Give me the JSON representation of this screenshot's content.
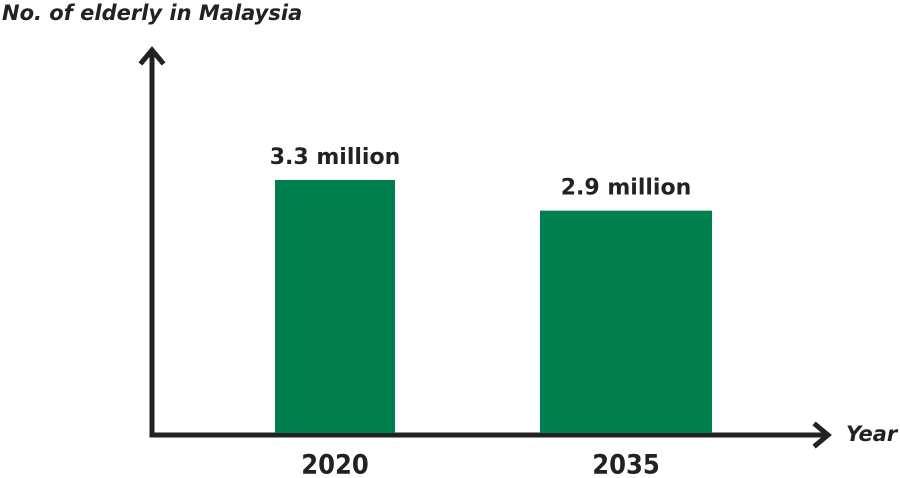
{
  "chart_data": {
    "type": "bar",
    "title": "No. of elderly in Malaysia",
    "x_label": "Year",
    "categories": [
      "2020",
      "2035"
    ],
    "values": [
      3.3,
      2.9
    ],
    "value_labels": [
      "3.3 million",
      "2.9 million"
    ],
    "color": "#007f4e"
  }
}
